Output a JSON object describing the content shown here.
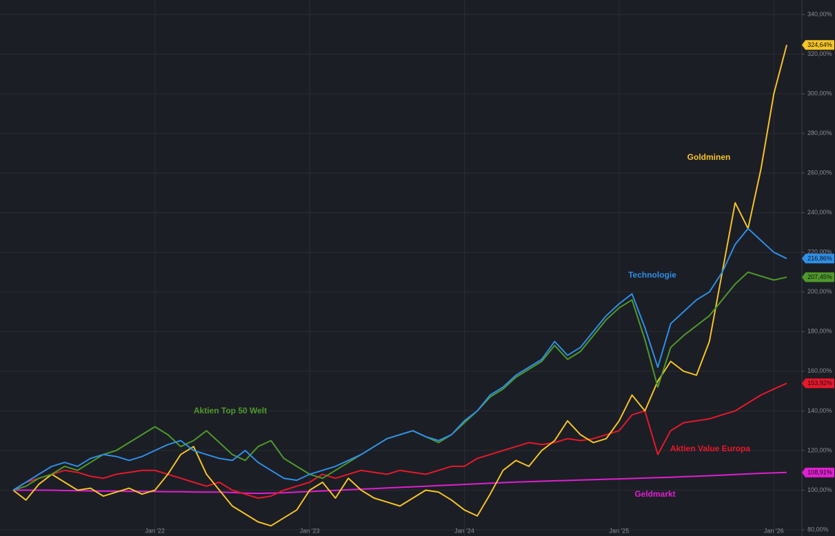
{
  "chart_data": {
    "type": "line",
    "categories": [
      null,
      null,
      null,
      null,
      null,
      null,
      null,
      null,
      null,
      null,
      null,
      "Jan '22",
      null,
      null,
      null,
      null,
      null,
      null,
      null,
      null,
      null,
      null,
      null,
      "Jan '23",
      null,
      null,
      null,
      null,
      null,
      null,
      null,
      null,
      null,
      null,
      null,
      "Jan '24",
      null,
      null,
      null,
      null,
      null,
      null,
      null,
      null,
      null,
      null,
      null,
      "Jan '25",
      null,
      null,
      null,
      null,
      null,
      null,
      null,
      null,
      null,
      null,
      null,
      "Jan '26",
      null
    ],
    "ylim": [
      80,
      340
    ],
    "yticks": [
      {
        "value": 80,
        "label": "80,00%"
      },
      {
        "value": 100,
        "label": "100,00%"
      },
      {
        "value": 120,
        "label": "120,00%"
      },
      {
        "value": 140,
        "label": "140,00%"
      },
      {
        "value": 160,
        "label": "160,00%"
      },
      {
        "value": 180,
        "label": "180,00%"
      },
      {
        "value": 200,
        "label": "200,00%"
      },
      {
        "value": 220,
        "label": "220,00%"
      },
      {
        "value": 240,
        "label": "240,00%"
      },
      {
        "value": 260,
        "label": "260,00%"
      },
      {
        "value": 280,
        "label": "280,00%"
      },
      {
        "value": 300,
        "label": "300,00%"
      },
      {
        "value": 320,
        "label": "320,00%"
      },
      {
        "value": 340,
        "label": "340,00%"
      }
    ],
    "grid": true,
    "series": [
      {
        "name": "Goldminen",
        "color": "#f5c427",
        "end_label": "324,64%",
        "values": [
          100,
          95,
          103,
          108,
          104,
          100,
          101,
          97,
          99,
          101,
          98,
          100,
          108,
          118,
          122,
          108,
          100,
          92,
          88,
          84,
          82,
          86,
          90,
          100,
          104,
          96,
          106,
          100,
          96,
          94,
          92,
          96,
          100,
          99,
          95,
          90,
          87,
          98,
          110,
          115,
          112,
          120,
          125,
          135,
          128,
          124,
          126,
          135,
          148,
          140,
          155,
          165,
          160,
          158,
          175,
          210,
          245,
          232,
          262,
          300,
          324.64
        ]
      },
      {
        "name": "Technologie",
        "color": "#2e8fe8",
        "end_label": "216,86%",
        "values": [
          100,
          104,
          108,
          112,
          114,
          112,
          116,
          118,
          117,
          115,
          117,
          120,
          123,
          125,
          120,
          118,
          116,
          115,
          120,
          114,
          110,
          106,
          105,
          108,
          110,
          112,
          115,
          118,
          122,
          126,
          128,
          130,
          127,
          125,
          128,
          135,
          140,
          148,
          152,
          158,
          162,
          166,
          175,
          168,
          172,
          180,
          188,
          194,
          199,
          182,
          162,
          184,
          190,
          196,
          200,
          210,
          224,
          232,
          226,
          220,
          216.86
        ]
      },
      {
        "name": "Aktien Top 50 Welt",
        "color": "#4e9a2b",
        "end_label": "207,45%",
        "values": [
          100,
          102,
          106,
          108,
          112,
          110,
          114,
          118,
          120,
          124,
          128,
          132,
          128,
          122,
          125,
          130,
          124,
          118,
          115,
          122,
          125,
          116,
          112,
          108,
          106,
          110,
          114,
          118,
          122,
          126,
          128,
          130,
          127,
          124,
          128,
          134,
          140,
          147,
          151,
          157,
          161,
          165,
          173,
          166,
          170,
          178,
          186,
          192,
          196,
          176,
          152,
          172,
          178,
          183,
          188,
          196,
          204,
          210,
          208,
          206,
          207.45
        ]
      },
      {
        "name": "Aktien Value Europa",
        "color": "#e8182b",
        "end_label": "153,92%",
        "values": [
          100,
          104,
          106,
          108,
          110,
          109,
          107,
          106,
          108,
          109,
          110,
          110,
          108,
          106,
          104,
          102,
          104,
          100,
          98,
          96,
          97,
          100,
          102,
          104,
          108,
          106,
          108,
          110,
          109,
          108,
          110,
          109,
          108,
          110,
          112,
          112,
          116,
          118,
          120,
          122,
          124,
          123,
          124,
          126,
          125,
          126,
          128,
          130,
          138,
          140,
          118,
          130,
          134,
          135,
          136,
          138,
          140,
          144,
          148,
          151,
          153.92
        ]
      },
      {
        "name": "Geldmarkt",
        "color": "#e01fd2",
        "end_label": "108,91%",
        "values": [
          100,
          100,
          100,
          100,
          99.8,
          99.7,
          99.6,
          99.5,
          99.5,
          99.4,
          99.4,
          99.3,
          99.2,
          99.2,
          99.1,
          99,
          99,
          98.8,
          98.5,
          98.4,
          98.5,
          98.7,
          99,
          99.3,
          99.6,
          99.9,
          100.2,
          100.5,
          100.8,
          101.1,
          101.4,
          101.7,
          102,
          102.3,
          102.6,
          102.9,
          103.2,
          103.5,
          103.8,
          104.1,
          104.3,
          104.5,
          104.7,
          104.9,
          105.1,
          105.3,
          105.5,
          105.7,
          105.9,
          106.1,
          106.3,
          106.5,
          106.8,
          107,
          107.3,
          107.6,
          107.9,
          108.2,
          108.5,
          108.7,
          108.91
        ]
      }
    ]
  }
}
